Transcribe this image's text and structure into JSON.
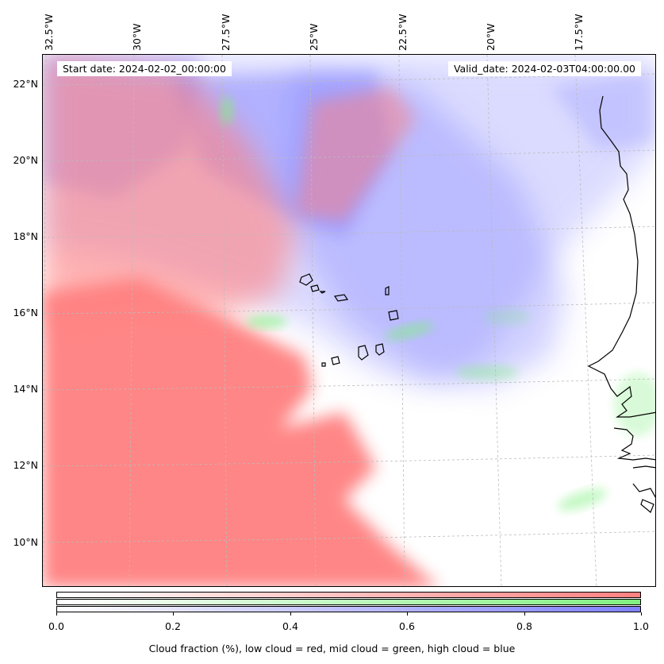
{
  "map": {
    "start_label": "Start date: 2024-02-02_00:00:00",
    "valid_label": "Valid_date: 2024-02-03T04:00:00.00",
    "lon_labels": [
      "32.5°W",
      "30°W",
      "27.5°W",
      "25°W",
      "22.5°W",
      "20°W",
      "17.5°W"
    ],
    "lat_labels": [
      "22°N",
      "20°N",
      "18°N",
      "16°N",
      "14°N",
      "12°N",
      "10°N"
    ],
    "layers": [
      "low cloud",
      "mid cloud",
      "high cloud"
    ],
    "colors": {
      "low": "#ff8080",
      "mid": "#80f080",
      "high": "#8080ff",
      "coast": "#000000",
      "grid": "#bbbbbb"
    }
  },
  "colorbar": {
    "ticks": [
      "0.0",
      "0.2",
      "0.4",
      "0.6",
      "0.8",
      "1.0"
    ],
    "tick_values": [
      0.0,
      0.2,
      0.4,
      0.6,
      0.8,
      1.0
    ],
    "range": [
      0.0,
      1.0
    ],
    "caption": "Cloud fraction (%), low cloud = red, mid cloud = green, high cloud = blue"
  }
}
